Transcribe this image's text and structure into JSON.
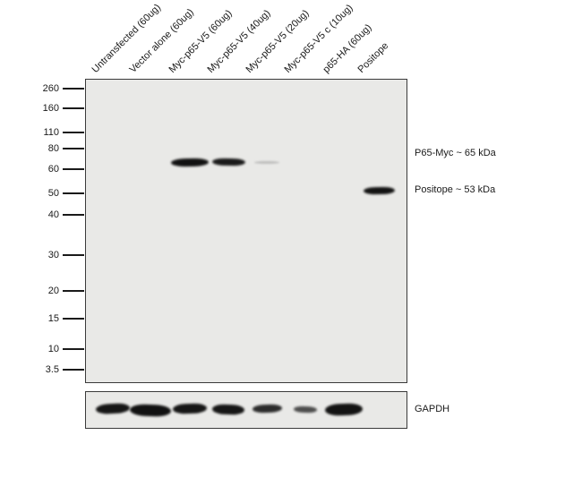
{
  "blot": {
    "lanes": [
      "Untransfected (60ug)",
      "Vector alone (60ug)",
      "Myc-p65-V5 (60ug)",
      "Myc-p65-V5 (40ug)",
      "Myc-p65-V5 (20ug)",
      "Myc-p65-V5 c (10ug)",
      "p65-HA (60ug)",
      "Positope"
    ],
    "mw_markers": [
      "260",
      "160",
      "110",
      "80",
      "60",
      "50",
      "40",
      "30",
      "20",
      "15",
      "10",
      "3.5"
    ],
    "annotations": {
      "p65_myc": "P65-Myc ~ 65 kDa",
      "positope": "Positope ~ 53 kDa",
      "loading_control": "GAPDH"
    },
    "main_bands": [
      {
        "lane": 3,
        "kda": 65,
        "intensity": "strong"
      },
      {
        "lane": 4,
        "kda": 65,
        "intensity": "strong"
      },
      {
        "lane": 5,
        "kda": 65,
        "intensity": "faint"
      },
      {
        "lane": 8,
        "kda": 53,
        "intensity": "strong"
      }
    ],
    "gapdh_bands": [
      {
        "lane": 1,
        "intensity": "strong"
      },
      {
        "lane": 2,
        "intensity": "strong"
      },
      {
        "lane": 3,
        "intensity": "strong"
      },
      {
        "lane": 4,
        "intensity": "strong"
      },
      {
        "lane": 5,
        "intensity": "medium"
      },
      {
        "lane": 6,
        "intensity": "weak"
      },
      {
        "lane": 7,
        "intensity": "strong"
      }
    ],
    "colors": {
      "background": "#ffffff",
      "panel_bg": "#e9e9e7",
      "panel_border": "#3a3a3a",
      "band": "#0b0b0b",
      "faint_band": "#8a8a8a",
      "text": "#1a1a1a"
    }
  }
}
